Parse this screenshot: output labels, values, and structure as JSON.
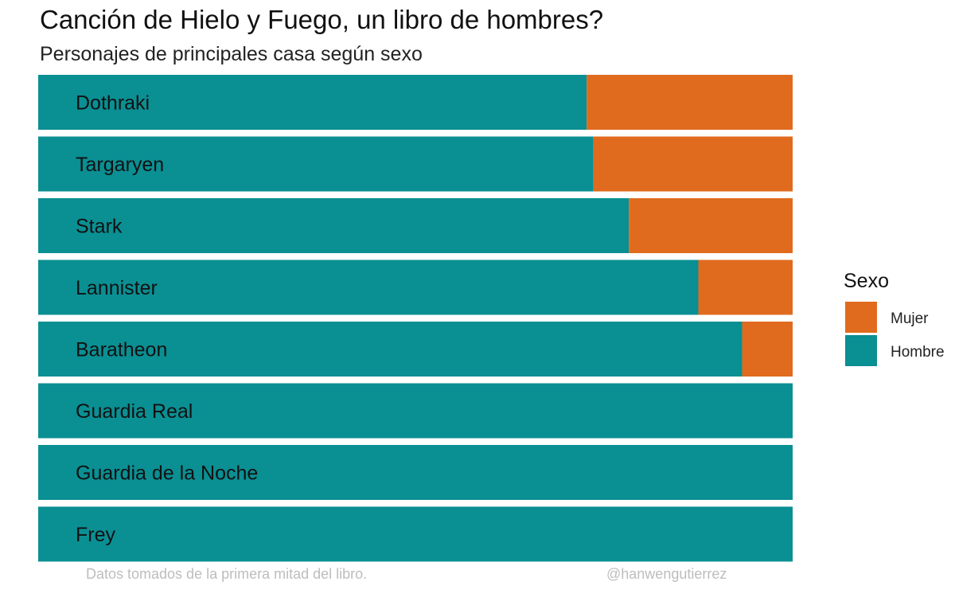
{
  "chart_data": {
    "type": "bar",
    "orientation": "horizontal",
    "stacked": "percent",
    "title": "Canción de Hielo y Fuego, un libro de hombres?",
    "subtitle": "Personajes de principales casa según sexo",
    "categories": [
      "Dothraki",
      "Targaryen",
      "Stark",
      "Lannister",
      "Baratheon",
      "Guardia Real",
      "Guardia de la Noche",
      "Frey"
    ],
    "series": [
      {
        "name": "Hombre",
        "color": "#0a8f93",
        "values": [
          0.727,
          0.736,
          0.783,
          0.875,
          0.933,
          1.0,
          1.0,
          1.0
        ]
      },
      {
        "name": "Mujer",
        "color": "#e06b1e",
        "values": [
          0.273,
          0.264,
          0.217,
          0.125,
          0.067,
          0.0,
          0.0,
          0.0
        ]
      }
    ],
    "xlim": [
      0,
      1
    ],
    "grid": false,
    "legend": {
      "title": "Sexo",
      "placement": "right",
      "entries": [
        {
          "label": "Mujer",
          "color": "#e06b1e"
        },
        {
          "label": "Hombre",
          "color": "#0a8f93"
        }
      ]
    },
    "caption_left": "Datos tomados de la primera mitad del libro.",
    "caption_right": "@hanwengutierrez"
  }
}
